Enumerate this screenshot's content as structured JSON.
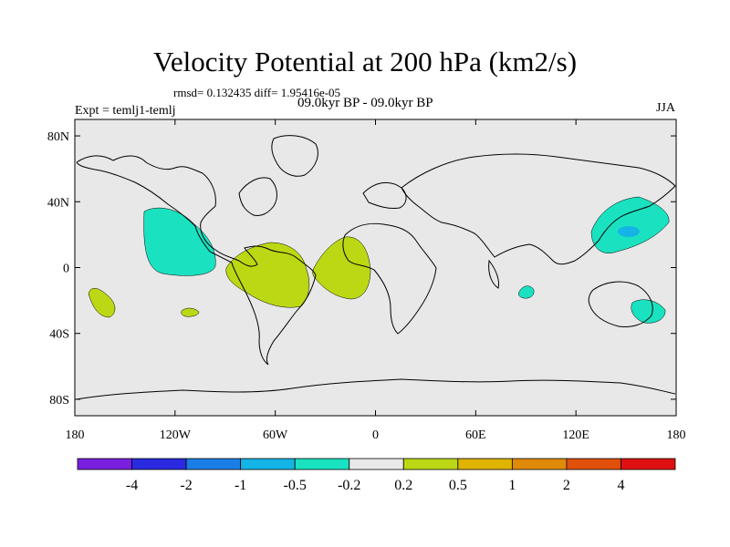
{
  "title": "Velocity Potential at 200 hPa (km2/s)",
  "stats_line": "rmsd= 0.132435 diff= 1.95416e-05",
  "experiment": "Expt = temlj1-temlj",
  "period": "09.0kyr BP - 09.0kyr BP",
  "season": "JJA",
  "map": {
    "lon_range": [
      -180,
      180
    ],
    "lat_range": [
      -90,
      90
    ],
    "lat_ticks": [
      {
        "value": 80,
        "label": "80N"
      },
      {
        "value": 40,
        "label": "40N"
      },
      {
        "value": 0,
        "label": "0"
      },
      {
        "value": -40,
        "label": "40S"
      },
      {
        "value": -80,
        "label": "80S"
      }
    ],
    "lon_ticks": [
      {
        "value": -180,
        "label": "180"
      },
      {
        "value": -120,
        "label": "120W"
      },
      {
        "value": -60,
        "label": "60W"
      },
      {
        "value": 0,
        "label": "0"
      },
      {
        "value": 60,
        "label": "60E"
      },
      {
        "value": 120,
        "label": "120E"
      },
      {
        "value": 180,
        "label": "180"
      }
    ],
    "background_color": "#e8e8e8"
  },
  "colorbar": {
    "colors": [
      "#7a1fe0",
      "#2a2ae0",
      "#1a7ee6",
      "#14b4e6",
      "#1ae2c0",
      "#e8e8e8",
      "#bcd814",
      "#e0b400",
      "#e08a0a",
      "#e0500a",
      "#e01010"
    ],
    "labels": [
      "-4",
      "-2",
      "-1",
      "-0.5",
      "-0.2",
      "0.2",
      "0.5",
      "1",
      "2",
      "4"
    ]
  },
  "chart_data": {
    "type": "filled-contour-map",
    "variable": "Velocity Potential at 200 hPa (km2/s)",
    "levels": [
      -4,
      -2,
      -1,
      -0.5,
      -0.2,
      0.2,
      0.5,
      1,
      2,
      4
    ],
    "anomaly_regions": [
      {
        "name": "eastern-north-pacific",
        "category": "-0.5 to -0.2",
        "color": "#1ae2c0"
      },
      {
        "name": "western-north-pacific",
        "category": "-0.5 to -0.2",
        "color": "#1ae2c0"
      },
      {
        "name": "western-north-pacific-core",
        "category": "-1 to -0.5",
        "color": "#14b4e6"
      },
      {
        "name": "eastern-indian-ocean",
        "category": "-0.5 to -0.2",
        "color": "#1ae2c0"
      },
      {
        "name": "eastern-australia",
        "category": "-0.5 to -0.2",
        "color": "#1ae2c0"
      },
      {
        "name": "south-america",
        "category": "0.2 to 0.5",
        "color": "#bcd814"
      },
      {
        "name": "equatorial-atlantic",
        "category": "0.2 to 0.5",
        "color": "#bcd814"
      },
      {
        "name": "south-pacific-west",
        "category": "0.2 to 0.5",
        "color": "#bcd814"
      },
      {
        "name": "south-pacific-central",
        "category": "0.2 to 0.5",
        "color": "#bcd814"
      }
    ]
  }
}
